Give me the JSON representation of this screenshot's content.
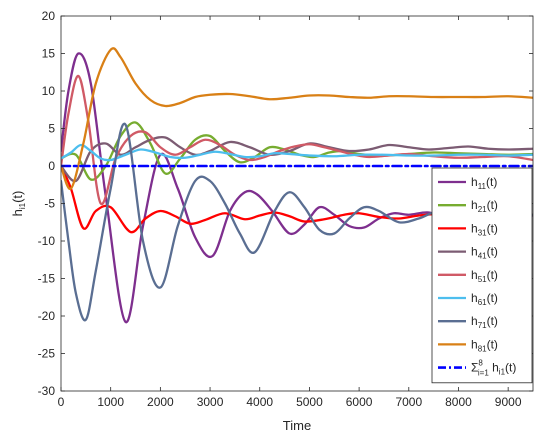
{
  "chart_data": {
    "type": "line",
    "xlabel": "Time",
    "ylabel": "h",
    "ylabel_sub": "i1",
    "ylabel_suffix": "(t)",
    "xlim": [
      0,
      9500
    ],
    "ylim": [
      -30,
      20
    ],
    "xticks": [
      0,
      1000,
      2000,
      3000,
      4000,
      5000,
      6000,
      7000,
      8000,
      9000
    ],
    "yticks": [
      -30,
      -25,
      -20,
      -15,
      -10,
      -5,
      0,
      5,
      10,
      15,
      20
    ],
    "grid": false,
    "legend_position": "bottom-right",
    "series": [
      {
        "name": "h",
        "sub": "11",
        "suffix": "(t)",
        "color": "#7E2F8E",
        "dashed": false,
        "x": [
          0,
          150,
          350,
          600,
          900,
          1300,
          1650,
          2000,
          2350,
          2700,
          3050,
          3400,
          3700,
          3950,
          4250,
          4600,
          4900,
          5200,
          5500,
          5800,
          6100,
          6400,
          6700,
          7000,
          7400,
          7800,
          8200,
          8600,
          9000,
          9500
        ],
        "y": [
          2,
          10,
          15,
          11,
          -4,
          -20.8,
          -8,
          1.5,
          -3,
          -9.5,
          -12,
          -6,
          -3.5,
          -3.8,
          -6,
          -9,
          -7.8,
          -5.5,
          -6.5,
          -8,
          -8.2,
          -7,
          -6.3,
          -6.5,
          -6.2,
          -7,
          -6.5,
          -6.8,
          -6.4,
          -6.6
        ]
      },
      {
        "name": "h",
        "sub": "21",
        "suffix": "(t)",
        "color": "#77AC30",
        "dashed": false,
        "x": [
          0,
          300,
          600,
          900,
          1200,
          1500,
          1800,
          2100,
          2400,
          2700,
          3000,
          3300,
          3600,
          3900,
          4200,
          4500,
          4800,
          5100,
          5400,
          5700,
          6000,
          6500,
          7000,
          7500,
          8000,
          8500,
          9000,
          9500
        ],
        "y": [
          1,
          1.5,
          -1.8,
          0,
          4,
          5.8,
          3,
          -1,
          1,
          3.5,
          4,
          2,
          0.5,
          1.2,
          2.5,
          2.2,
          1.5,
          1.2,
          1.8,
          2,
          1.6,
          1.4,
          1.6,
          1.8,
          1.7,
          1.6,
          1.5,
          1.6
        ]
      },
      {
        "name": "h",
        "sub": "31",
        "suffix": "(t)",
        "color": "#FF0000",
        "dashed": false,
        "x": [
          0,
          200,
          450,
          700,
          1000,
          1400,
          1700,
          2000,
          2300,
          2600,
          2900,
          3300,
          3700,
          4000,
          4300,
          4600,
          4900,
          5300,
          5700,
          6000,
          6400,
          6800,
          7200,
          7600,
          8000,
          8400,
          8800,
          9200,
          9500
        ],
        "y": [
          0,
          -3,
          -8.3,
          -6,
          -5.5,
          -8.8,
          -7,
          -6,
          -6.7,
          -7.7,
          -7.2,
          -6.3,
          -7.1,
          -6.6,
          -6.2,
          -6.7,
          -7.4,
          -7.1,
          -6.5,
          -6.3,
          -6.8,
          -7,
          -6.6,
          -6.4,
          -6.7,
          -6.5,
          -6.3,
          -6.6,
          -6.5
        ]
      },
      {
        "name": "h",
        "sub": "41",
        "suffix": "(t)",
        "color": "#7C5C73",
        "dashed": false,
        "x": [
          0,
          300,
          600,
          900,
          1200,
          1500,
          1800,
          2100,
          2400,
          2700,
          3000,
          3400,
          3800,
          4200,
          4600,
          5000,
          5400,
          5800,
          6200,
          6600,
          7000,
          7400,
          7800,
          8200,
          8600,
          9000,
          9500
        ],
        "y": [
          0,
          -2,
          2,
          3,
          1.5,
          2.5,
          3.5,
          3.8,
          2.5,
          1.5,
          2,
          3.2,
          2.5,
          1.5,
          2,
          3,
          2.5,
          2,
          2.2,
          2.8,
          2.5,
          2.2,
          2.4,
          2.6,
          2.3,
          2.2,
          2.3
        ]
      },
      {
        "name": "h",
        "sub": "51",
        "suffix": "(t)",
        "color": "#D05A66",
        "dashed": false,
        "x": [
          0,
          150,
          350,
          550,
          800,
          1100,
          1400,
          1700,
          2000,
          2300,
          2600,
          2900,
          3200,
          3500,
          3800,
          4100,
          4400,
          4700,
          5000,
          5300,
          5600,
          5900,
          6200,
          6600,
          7000,
          7500,
          8000,
          8500,
          9000,
          9500
        ],
        "y": [
          0,
          7,
          12,
          6,
          -5,
          1,
          4,
          4.5,
          2.5,
          1.5,
          2.5,
          3.5,
          2.8,
          1.5,
          0.8,
          1.2,
          2,
          2.6,
          2.9,
          2.5,
          2,
          1.5,
          1.2,
          1.4,
          1.6,
          1.3,
          1.1,
          1.2,
          1.3,
          0.8
        ]
      },
      {
        "name": "h",
        "sub": "61",
        "suffix": "(t)",
        "color": "#4DBEEE",
        "dashed": false,
        "x": [
          0,
          200,
          400,
          600,
          800,
          1000,
          1300,
          1600,
          1900,
          2200,
          2500,
          2800,
          3100,
          3400,
          3700,
          4000,
          4300,
          4600,
          5000,
          5500,
          6000,
          6500,
          7000,
          7500,
          8000,
          8500,
          9000,
          9500
        ],
        "y": [
          1,
          1.8,
          2.8,
          2,
          1,
          0.8,
          1.5,
          2.2,
          1.8,
          1.2,
          1.1,
          1.5,
          1.9,
          1.6,
          1.2,
          1.3,
          1.7,
          1.6,
          1.4,
          1.3,
          1.5,
          1.5,
          1.4,
          1.4,
          1.5,
          1.5,
          1.4,
          1.5
        ]
      },
      {
        "name": "h",
        "sub": "71",
        "suffix": "(t)",
        "color": "#5A6E92",
        "dashed": false,
        "x": [
          0,
          150,
          300,
          500,
          700,
          1000,
          1300,
          1650,
          2000,
          2350,
          2700,
          3000,
          3300,
          3600,
          3900,
          4300,
          4600,
          4900,
          5200,
          5500,
          5800,
          6100,
          6400,
          6800,
          7200,
          7600,
          8000,
          8400,
          8800,
          9200,
          9500
        ],
        "y": [
          -2,
          -10,
          -17,
          -20.5,
          -14,
          -3,
          5.5,
          -10,
          -16.2,
          -8,
          -2,
          -2,
          -5,
          -9,
          -11.5,
          -6,
          -3.5,
          -5.5,
          -8.5,
          -9,
          -7,
          -5.5,
          -6,
          -7.5,
          -7,
          -6,
          -6.5,
          -7,
          -6.3,
          -6.6,
          -6.5
        ]
      },
      {
        "name": "h",
        "sub": "81",
        "suffix": "(t)",
        "color": "#D98016",
        "dashed": false,
        "x": [
          0,
          200,
          450,
          700,
          1000,
          1200,
          1500,
          1800,
          2100,
          2400,
          2700,
          3000,
          3400,
          3800,
          4200,
          4600,
          5000,
          5400,
          5800,
          6200,
          6600,
          7000,
          7500,
          8000,
          8500,
          9000,
          9500
        ],
        "y": [
          0,
          -3,
          3,
          11,
          15.5,
          14.5,
          11,
          8.8,
          8,
          8.4,
          9.2,
          9.5,
          9.6,
          9.3,
          8.9,
          9.1,
          9.4,
          9.4,
          9.2,
          9.1,
          9.3,
          9.3,
          9.2,
          9.2,
          9.2,
          9.3,
          9.1
        ]
      },
      {
        "name": "Σ",
        "sub": "i=1",
        "sup": "8",
        "suffix": " h",
        "sub2": "i1",
        "suffix2": "(t)",
        "color": "#0000FF",
        "dashed": true,
        "x": [
          0,
          9500
        ],
        "y": [
          0,
          0
        ]
      }
    ]
  }
}
